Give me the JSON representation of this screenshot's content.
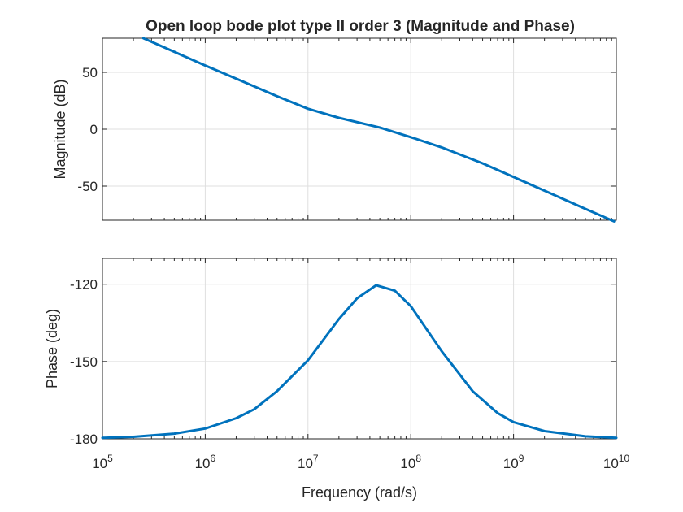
{
  "chart_data": [
    {
      "type": "line",
      "title": "Open loop bode plot type II order 3 (Magnitude and Phase)",
      "ylabel": "Magnitude (dB)",
      "xscale": "log",
      "xlim": [
        100000,
        10000000000
      ],
      "ylim": [
        -80,
        80
      ],
      "yticks": [
        "50",
        "0",
        "-50"
      ],
      "ytick_values": [
        50,
        0,
        -50
      ],
      "grid": true,
      "series": [
        {
          "color": "#0072bd",
          "x": [
            250000,
            500000,
            1000000,
            2000000,
            5000000,
            10000000,
            20000000,
            50000000,
            100000000,
            200000000,
            500000000,
            1000000000,
            2000000000,
            5000000000,
            9500000000
          ],
          "y": [
            80,
            68,
            56,
            44.5,
            29,
            18,
            10,
            1.5,
            -7,
            -16,
            -30,
            -42,
            -54,
            -70,
            -81
          ]
        }
      ]
    },
    {
      "type": "line",
      "xlabel": "Frequency (rad/s)",
      "ylabel": "Phase (deg)",
      "xscale": "log",
      "xlim": [
        100000,
        10000000000
      ],
      "ylim": [
        -180,
        -110
      ],
      "xticks": [
        {
          "base": "10",
          "exp": "5",
          "value": 100000
        },
        {
          "base": "10",
          "exp": "6",
          "value": 1000000
        },
        {
          "base": "10",
          "exp": "7",
          "value": 10000000
        },
        {
          "base": "10",
          "exp": "8",
          "value": 100000000
        },
        {
          "base": "10",
          "exp": "9",
          "value": 1000000000
        },
        {
          "base": "10",
          "exp": "10",
          "value": 10000000000
        }
      ],
      "yticks": [
        "-120",
        "-150",
        "-180"
      ],
      "ytick_values": [
        -120,
        -150,
        -180
      ],
      "grid": true,
      "series": [
        {
          "color": "#0072bd",
          "x": [
            100000,
            200000,
            500000,
            1000000,
            2000000,
            3000000,
            5000000,
            10000000,
            20000000,
            30000000,
            46000000,
            70000000,
            100000000,
            200000000,
            400000000,
            700000000,
            1000000000,
            2000000000,
            5000000000,
            10000000000
          ],
          "y": [
            -179.6,
            -179.2,
            -178,
            -176,
            -172,
            -168.5,
            -161.5,
            -149.5,
            -133.5,
            -125.5,
            -120.4,
            -122.5,
            -128.5,
            -146,
            -161.5,
            -170,
            -173.5,
            -177,
            -179,
            -179.6
          ]
        }
      ]
    }
  ]
}
